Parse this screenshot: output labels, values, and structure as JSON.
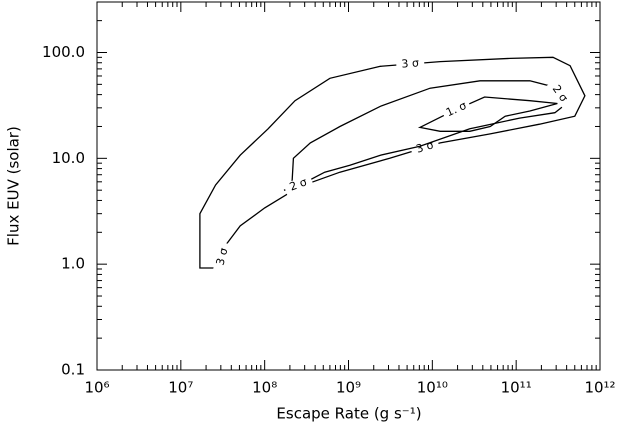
{
  "chart_data": {
    "type": "contour",
    "xlabel": "Escape Rate (g s⁻¹)",
    "ylabel": "Flux EUV (solar)",
    "xscale": "log",
    "yscale": "log",
    "xlim": [
      1000000,
      1000000000000
    ],
    "ylim": [
      0.1,
      300
    ],
    "xticks": [
      {
        "value": 1000000,
        "label": "10⁶"
      },
      {
        "value": 10000000,
        "label": "10⁷"
      },
      {
        "value": 100000000,
        "label": "10⁸"
      },
      {
        "value": 1000000000,
        "label": "10⁹"
      },
      {
        "value": 10000000000,
        "label": "10¹⁰"
      },
      {
        "value": 100000000000,
        "label": "10¹¹"
      },
      {
        "value": 1000000000000,
        "label": "10¹²"
      }
    ],
    "yticks": [
      0.1,
      {
        "value": 1,
        "label": "1.0"
      },
      {
        "value": 10,
        "label": "10.0"
      },
      {
        "value": 100,
        "label": "100.0"
      }
    ],
    "minor_ticks": true,
    "series": [
      {
        "name": "3 σ",
        "color": "#000000",
        "x": [
          16900000,
          16900000,
          26000000,
          51000000,
          110000000,
          230000000,
          600000000,
          2400000000,
          12400000000,
          85000000000,
          275000000000,
          440000000000,
          660000000000,
          500000000000,
          190000000000,
          49000000000,
          12400000000,
          3100000000,
          790000000,
          260000000,
          100000000,
          51000000,
          34000000,
          29000000
        ],
        "y": [
          0.92,
          3.0,
          5.6,
          10.7,
          19,
          35,
          57,
          74,
          82,
          88,
          90,
          75,
          39,
          25,
          21,
          17,
          14,
          10,
          7.4,
          5.4,
          3.4,
          2.3,
          1.5,
          0.92
        ]
      },
      {
        "name": "2 σ",
        "color": "#000000",
        "x": [
          170000000,
          210000000,
          220000000,
          350000000,
          790000000,
          2400000000,
          9400000000,
          37000000000,
          146000000000,
          290000000000,
          400000000000,
          290000000000,
          110000000000,
          28000000000,
          7100000000,
          2400000000,
          1040000000,
          520000000,
          300000000
        ],
        "y": [
          5.0,
          5.2,
          10,
          14,
          20,
          31,
          46,
          54,
          54,
          47,
          33,
          27,
          24,
          19,
          13,
          10.7,
          8.6,
          7.4,
          5.9
        ]
      },
      {
        "name": "1. σ",
        "color": "#000000",
        "x": [
          7100000000,
          16000000000,
          42000000000,
          146000000000,
          310000000000,
          146000000000,
          74000000000,
          49000000000,
          28000000000,
          12400000000
        ],
        "y": [
          19.6,
          27,
          38,
          35,
          33,
          28,
          25,
          20,
          18,
          18
        ]
      }
    ]
  }
}
